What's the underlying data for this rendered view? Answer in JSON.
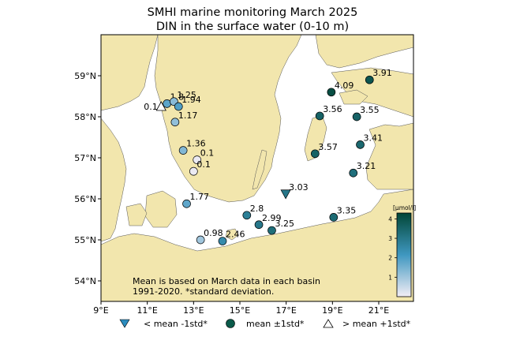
{
  "title_line1": "SMHI marine monitoring March 2025",
  "title_line2": "DIN in the surface water (0-10 m)",
  "map": {
    "lon_range": [
      9,
      22.5
    ],
    "lat_range": [
      53.5,
      60
    ],
    "lon_ticks": [
      "9°E",
      "11°E",
      "13°E",
      "15°E",
      "17°E",
      "19°E",
      "21°E"
    ],
    "lat_ticks": [
      "54°N",
      "55°N",
      "56°N",
      "57°N",
      "58°N",
      "59°N"
    ],
    "land_color": "#f2e6ad",
    "sea_color": "#ffffff"
  },
  "note_line1": "Mean is based on March data in each basin",
  "note_line2": "1991-2020. *standard deviation.",
  "colorbar": {
    "unit": "[µmol/l]",
    "ticks": [
      "1",
      "2",
      "3",
      "4"
    ],
    "range": [
      0,
      4.3
    ],
    "color_low": "#f3eef6",
    "color_mid": "#3f97c0",
    "color_high": "#014636"
  },
  "legend": {
    "below": "< mean -1std*",
    "normal": "mean ±1std*",
    "above": "> mean +1std*"
  },
  "stations": [
    {
      "label": "0.1",
      "value": 0.1,
      "lon": 11.6,
      "lat": 58.25,
      "class": "above"
    },
    {
      "label": "1.8",
      "value": 1.8,
      "lon": 11.85,
      "lat": 58.32,
      "class": "normal"
    },
    {
      "label": "1.25",
      "value": 1.25,
      "lon": 12.15,
      "lat": 58.37,
      "class": "normal"
    },
    {
      "label": "1.94",
      "value": 1.94,
      "lon": 12.35,
      "lat": 58.25,
      "class": "normal"
    },
    {
      "label": "1.17",
      "value": 1.17,
      "lon": 12.2,
      "lat": 57.87,
      "class": "normal"
    },
    {
      "label": "1.36",
      "value": 1.36,
      "lon": 12.55,
      "lat": 57.18,
      "class": "normal"
    },
    {
      "label": "0.1",
      "value": 0.1,
      "lon": 13.15,
      "lat": 56.95,
      "class": "normal"
    },
    {
      "label": "0.1",
      "value": 0.1,
      "lon": 13.0,
      "lat": 56.67,
      "class": "normal"
    },
    {
      "label": "1.77",
      "value": 1.77,
      "lon": 12.7,
      "lat": 55.88,
      "class": "normal"
    },
    {
      "label": "0.98",
      "value": 0.98,
      "lon": 13.3,
      "lat": 55.0,
      "class": "normal"
    },
    {
      "label": "2.46",
      "value": 2.46,
      "lon": 14.25,
      "lat": 54.97,
      "class": "normal"
    },
    {
      "label": "2.8",
      "value": 2.8,
      "lon": 15.3,
      "lat": 55.6,
      "class": "normal"
    },
    {
      "label": "2.99",
      "value": 2.99,
      "lon": 15.82,
      "lat": 55.37,
      "class": "normal"
    },
    {
      "label": "3.25",
      "value": 3.25,
      "lon": 16.38,
      "lat": 55.23,
      "class": "normal"
    },
    {
      "label": "3.03",
      "value": 3.03,
      "lon": 16.98,
      "lat": 56.12,
      "class": "below"
    },
    {
      "label": "3.35",
      "value": 3.35,
      "lon": 19.05,
      "lat": 55.55,
      "class": "normal"
    },
    {
      "label": "3.57",
      "value": 3.57,
      "lon": 18.25,
      "lat": 57.1,
      "class": "normal"
    },
    {
      "label": "3.56",
      "value": 3.56,
      "lon": 18.45,
      "lat": 58.02,
      "class": "normal"
    },
    {
      "label": "4.09",
      "value": 4.09,
      "lon": 18.95,
      "lat": 58.6,
      "class": "normal"
    },
    {
      "label": "3.91",
      "value": 3.91,
      "lon": 20.6,
      "lat": 58.9,
      "class": "normal"
    },
    {
      "label": "3.55",
      "value": 3.55,
      "lon": 20.05,
      "lat": 58.0,
      "class": "normal"
    },
    {
      "label": "3.41",
      "value": 3.41,
      "lon": 20.2,
      "lat": 57.32,
      "class": "normal"
    },
    {
      "label": "3.21",
      "value": 3.21,
      "lon": 19.9,
      "lat": 56.63,
      "class": "normal"
    }
  ]
}
